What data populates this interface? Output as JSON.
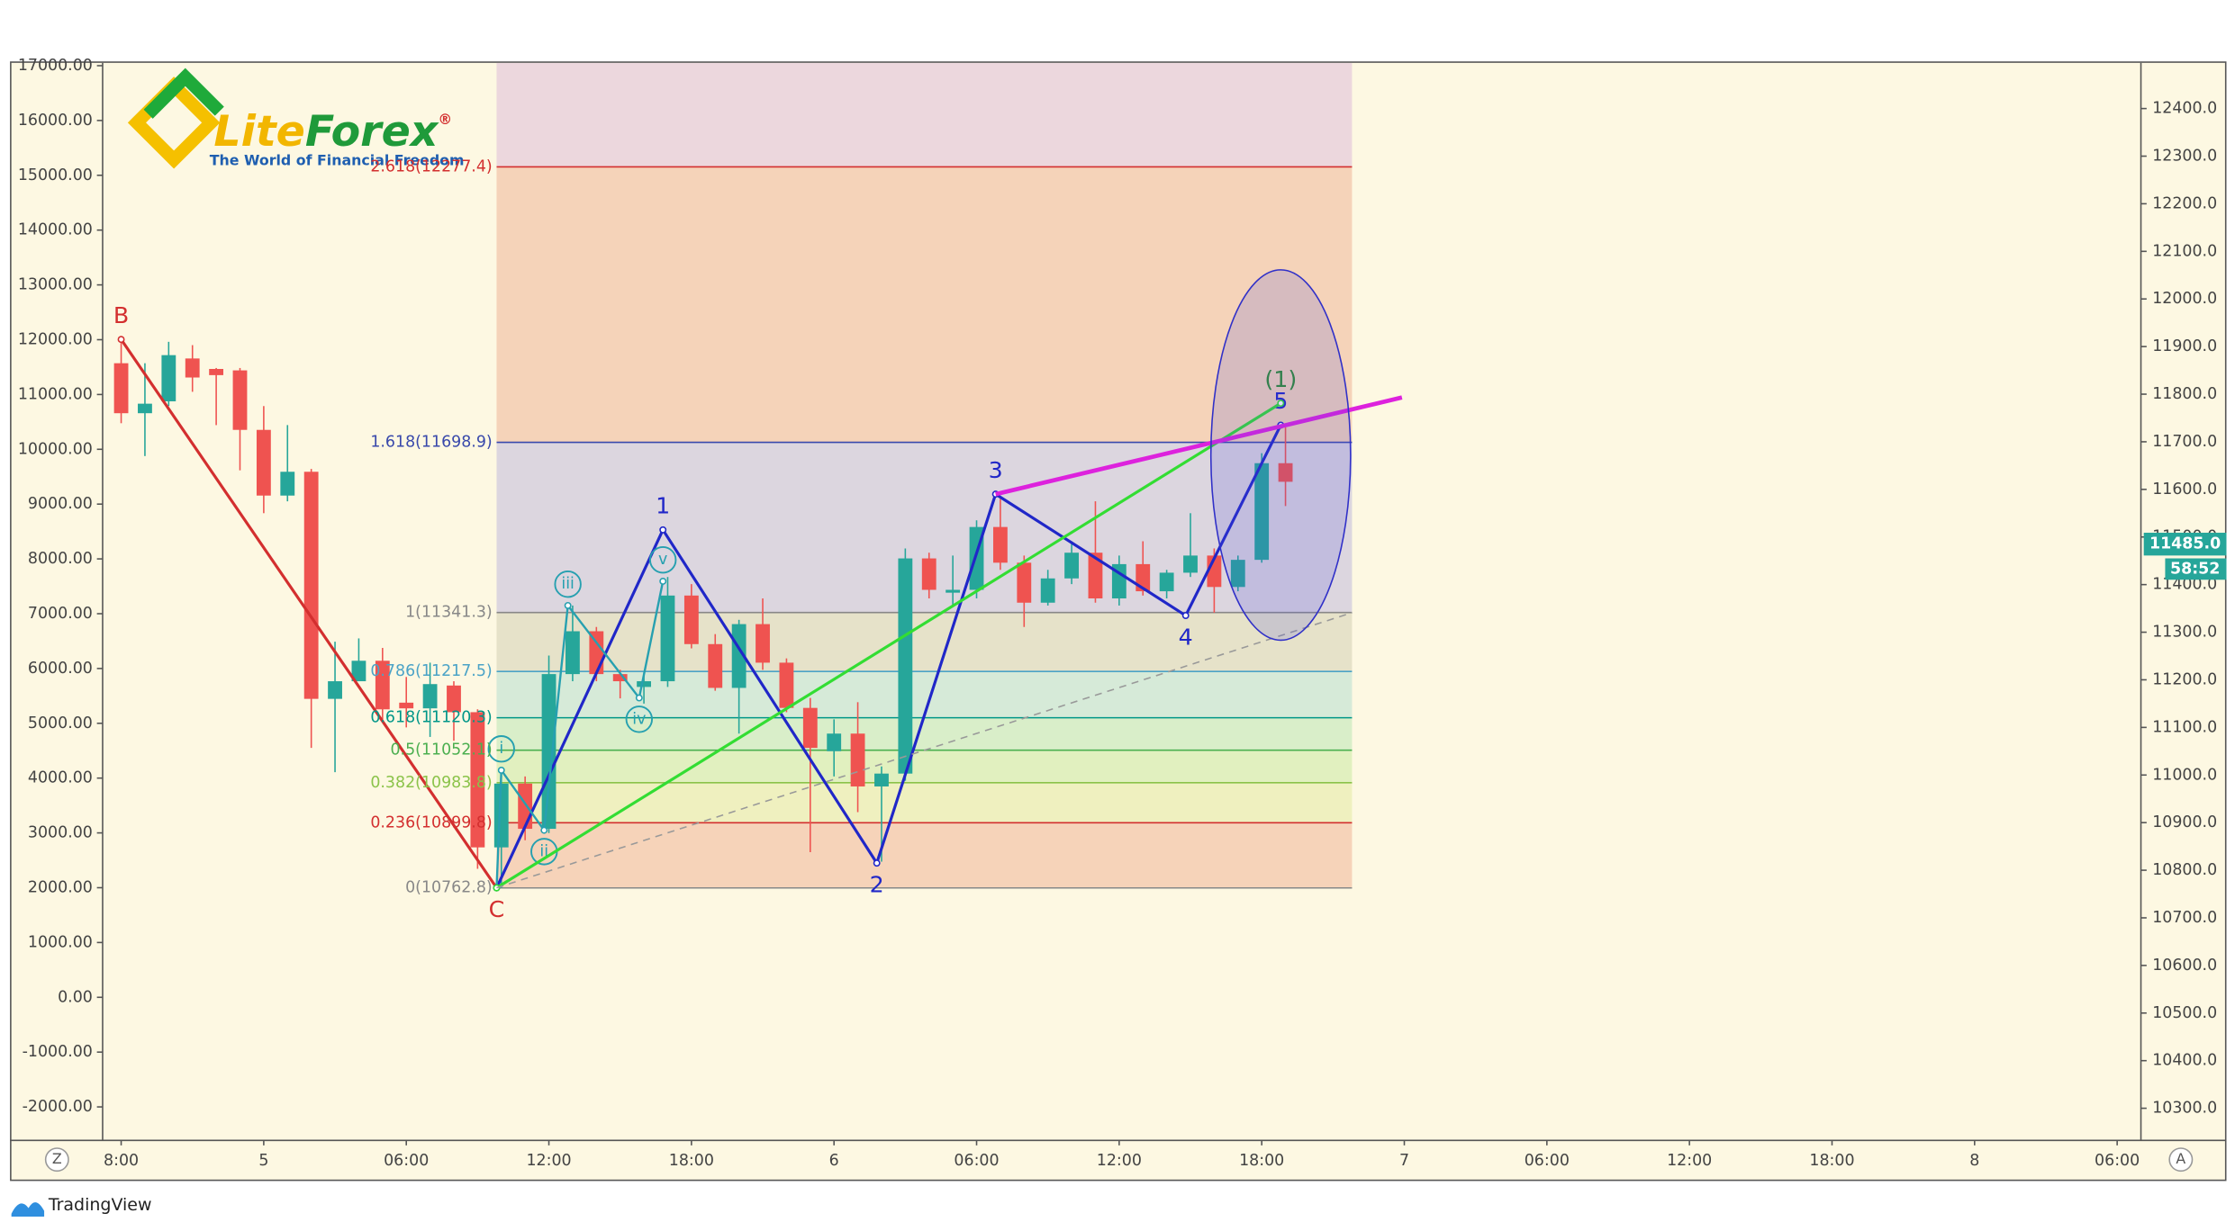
{
  "chart_data": {
    "type": "candlestick",
    "up_color": "#26a69a",
    "down_color": "#ef5350",
    "x": [
      0,
      1,
      2,
      3,
      4,
      5,
      6,
      7,
      8,
      9,
      10,
      11,
      12,
      13,
      14,
      15,
      16,
      17,
      18,
      19,
      20,
      21,
      22,
      23,
      24,
      25,
      26,
      27,
      28,
      29,
      30,
      31,
      32,
      33,
      34,
      35,
      36,
      37,
      38,
      39,
      40,
      41,
      42,
      43,
      44,
      45,
      46,
      47,
      48,
      49
    ],
    "open": [
      11865,
      11760,
      11785,
      11875,
      11853,
      11850,
      11725,
      11587,
      11637,
      11160,
      11197,
      11240,
      11152,
      11140,
      11188,
      11132,
      10848,
      10982,
      10887,
      11212,
      11302,
      11212,
      11185,
      11197,
      11377,
      11275,
      11183,
      11317,
      11236,
      11141,
      11050,
      11087,
      10976,
      11003,
      11455,
      11383,
      11389,
      11521,
      11446,
      11362,
      11413,
      11467,
      11371,
      11443,
      11386,
      11425,
      11461,
      11395,
      11452,
      11655
    ],
    "high": [
      11915,
      11865,
      11910,
      11903,
      11855,
      11855,
      11775,
      11735,
      11643,
      11280,
      11287,
      11267,
      11206,
      11236,
      11197,
      11138,
      11012,
      10997,
      11251,
      11356,
      11311,
      11221,
      11215,
      11416,
      11401,
      11296,
      11326,
      11371,
      11245,
      11162,
      11117,
      11153,
      11018,
      11476,
      11467,
      11461,
      11535,
      11580,
      11461,
      11431,
      11491,
      11575,
      11461,
      11491,
      11431,
      11550,
      11476,
      11461,
      11676,
      11730
    ],
    "low": [
      11739,
      11670,
      11775,
      11805,
      11735,
      11640,
      11550,
      11575,
      11057,
      11006,
      11197,
      11117,
      11100,
      11080,
      11072,
      10803,
      10763,
      10863,
      10878,
      11197,
      11197,
      11161,
      11150,
      11185,
      11266,
      11177,
      11087,
      11221,
      11132,
      10838,
      10997,
      10922,
      10818,
      10988,
      11371,
      11356,
      11371,
      11431,
      11311,
      11356,
      11401,
      11362,
      11356,
      11377,
      11371,
      11416,
      11341,
      11386,
      11446,
      11565
    ],
    "close": [
      11760,
      11780,
      11882,
      11835,
      11840,
      11725,
      11587,
      11637,
      11160,
      11197,
      11240,
      11138,
      11140,
      11191,
      11132,
      10848,
      10982,
      10887,
      11212,
      11302,
      11212,
      11197,
      11197,
      11377,
      11275,
      11183,
      11317,
      11236,
      11141,
      11057,
      11087,
      10976,
      11003,
      11455,
      11389,
      11389,
      11521,
      11446,
      11362,
      11413,
      11467,
      11371,
      11443,
      11386,
      11425,
      11461,
      11395,
      11452,
      11655,
      11616
    ],
    "xlim": [
      -0.78,
      85
    ],
    "xticks": [
      {
        "value": 0,
        "label": "8:00"
      },
      {
        "value": 6,
        "label": "5"
      },
      {
        "value": 12,
        "label": "06:00"
      },
      {
        "value": 18,
        "label": "12:00"
      },
      {
        "value": 24,
        "label": "18:00"
      },
      {
        "value": 30,
        "label": "6"
      },
      {
        "value": 36,
        "label": "06:00"
      },
      {
        "value": 42,
        "label": "12:00"
      },
      {
        "value": 48,
        "label": "18:00"
      },
      {
        "value": 54,
        "label": "7"
      },
      {
        "value": 60,
        "label": "06:00"
      },
      {
        "value": 66,
        "label": "12:00"
      },
      {
        "value": 72,
        "label": "18:00"
      },
      {
        "value": 78,
        "label": "8"
      },
      {
        "value": 84,
        "label": "06:00"
      }
    ],
    "ylim": [
      10234,
      12496
    ],
    "yticks": [
      {
        "value": 12400,
        "label": "12400.0"
      },
      {
        "value": 12300,
        "label": "12300.0"
      },
      {
        "value": 12200,
        "label": "12200.0"
      },
      {
        "value": 12100,
        "label": "12100.0"
      },
      {
        "value": 12000,
        "label": "12000.0"
      },
      {
        "value": 11900,
        "label": "11900.0"
      },
      {
        "value": 11800,
        "label": "11800.0"
      },
      {
        "value": 11700,
        "label": "11700.0"
      },
      {
        "value": 11600,
        "label": "11600.0"
      },
      {
        "value": 11500,
        "label": "11500.0"
      },
      {
        "value": 11400,
        "label": "11400.0"
      },
      {
        "value": 11300,
        "label": "11300.0"
      },
      {
        "value": 11200,
        "label": "11200.0"
      },
      {
        "value": 11100,
        "label": "11100.0"
      },
      {
        "value": 11000,
        "label": "11000.0"
      },
      {
        "value": 10900,
        "label": "10900.0"
      },
      {
        "value": 10800,
        "label": "10800.0"
      },
      {
        "value": 10700,
        "label": "10700.0"
      },
      {
        "value": 10600,
        "label": "10600.0"
      },
      {
        "value": 10500,
        "label": "10500.0"
      },
      {
        "value": 10400,
        "label": "10400.0"
      },
      {
        "value": 10300,
        "label": "10300.0"
      }
    ],
    "y2lim": [
      -2598,
      17052
    ],
    "y2ticks": [
      {
        "value": 17000,
        "label": "17000.00"
      },
      {
        "value": 16000,
        "label": "16000.00"
      },
      {
        "value": 15000,
        "label": "15000.00"
      },
      {
        "value": 14000,
        "label": "14000.00"
      },
      {
        "value": 13000,
        "label": "13000.00"
      },
      {
        "value": 12000,
        "label": "12000.00"
      },
      {
        "value": 11000,
        "label": "11000.00"
      },
      {
        "value": 10000,
        "label": "10000.00"
      },
      {
        "value": 9000,
        "label": "9000.00"
      },
      {
        "value": 8000,
        "label": "8000.00"
      },
      {
        "value": 7000,
        "label": "7000.00"
      },
      {
        "value": 6000,
        "label": "6000.00"
      },
      {
        "value": 5000,
        "label": "5000.00"
      },
      {
        "value": 4000,
        "label": "4000.00"
      },
      {
        "value": 3000,
        "label": "3000.00"
      },
      {
        "value": 2000,
        "label": "2000.00"
      },
      {
        "value": 1000,
        "label": "1000.00"
      },
      {
        "value": 0,
        "label": "0.00"
      },
      {
        "value": -1000,
        "label": "-1000.00"
      },
      {
        "value": -2000,
        "label": "-2000.00"
      }
    ],
    "last_price": {
      "value": 11485,
      "label": "11485.0"
    },
    "countdown": "58:52",
    "fib": {
      "x": [
        15.8,
        51.8
      ],
      "levels": [
        {
          "value": 10762.8,
          "label": "0(10762.8)",
          "color": "#888888",
          "fill": "#f5cdb2"
        },
        {
          "value": 10899.8,
          "label": "0.236(10899.8)",
          "color": "#d32f2f",
          "fill": "#ecefb8"
        },
        {
          "value": 10983.8,
          "label": "0.382(10983.8)",
          "color": "#8bc34a",
          "fill": "#dcefb8"
        },
        {
          "value": 11052.1,
          "label": "0.5(11052.1)",
          "color": "#4caf50",
          "fill": "#d2ecc4"
        },
        {
          "value": 11120.3,
          "label": "0.618(11120.3)",
          "color": "#009688",
          "fill": "#cfe8d6"
        },
        {
          "value": 11217.5,
          "label": "0.786(11217.5)",
          "color": "#4ba3c7",
          "fill": "#e2dec4"
        },
        {
          "value": 11341.3,
          "label": "1(11341.3)",
          "color": "#888888",
          "fill": "#d6d0de"
        },
        {
          "value": 11698.9,
          "label": "1.618(11698.9)",
          "color": "#3949ab",
          "fill": "#f3cdb2"
        },
        {
          "value": 12277.4,
          "label": "2.618(12277.4)",
          "color": "#d32f2f",
          "fill": "#e9d1dc"
        }
      ]
    },
    "waves": [
      {
        "color": "#d32f2f",
        "width": 2,
        "x": [
          0,
          15.8
        ],
        "y": [
          11915,
          10763
        ],
        "labels": [
          "B",
          "C"
        ]
      },
      {
        "color": "#2027c8",
        "width": 2,
        "x": [
          15.8,
          22.8,
          31.8,
          36.8,
          44.8,
          48.8
        ],
        "y": [
          10763,
          11515,
          10815,
          11590,
          11335,
          11735
        ],
        "labels": [
          null,
          "1",
          "2",
          "3",
          "4",
          "5"
        ]
      },
      {
        "color": "#26a0b0",
        "width": 1.5,
        "circled": true,
        "x": [
          15.8,
          16,
          17.8,
          18.8,
          21.8,
          22.8
        ],
        "y": [
          10763,
          11010,
          10884,
          11356,
          11162,
          11407
        ],
        "labels": [
          null,
          "i",
          "ii",
          "iii",
          "iv",
          "v"
        ]
      },
      {
        "color": "#33dd33",
        "width": 2,
        "x": [
          15.8,
          48.8
        ],
        "y": [
          10763,
          11781
        ],
        "labels": [
          null,
          "(1)"
        ],
        "label_color": "#2e8b2e"
      },
      {
        "color": "#dd22dd",
        "width": 3,
        "x": [
          36.8,
          53.9
        ],
        "y": [
          11590,
          11793
        ]
      },
      {
        "color": "#999999",
        "width": 1,
        "dashed": true,
        "x": [
          15.8,
          51.8
        ],
        "y": [
          10763,
          11341
        ]
      }
    ]
  },
  "logo": {
    "brand_a": "Lite",
    "brand_b": "Forex",
    "mark": "®",
    "tagline": "The World of Financial Freedom"
  },
  "footer": {
    "brand": "TradingView",
    "left_button": "Z",
    "right_button": "A"
  }
}
